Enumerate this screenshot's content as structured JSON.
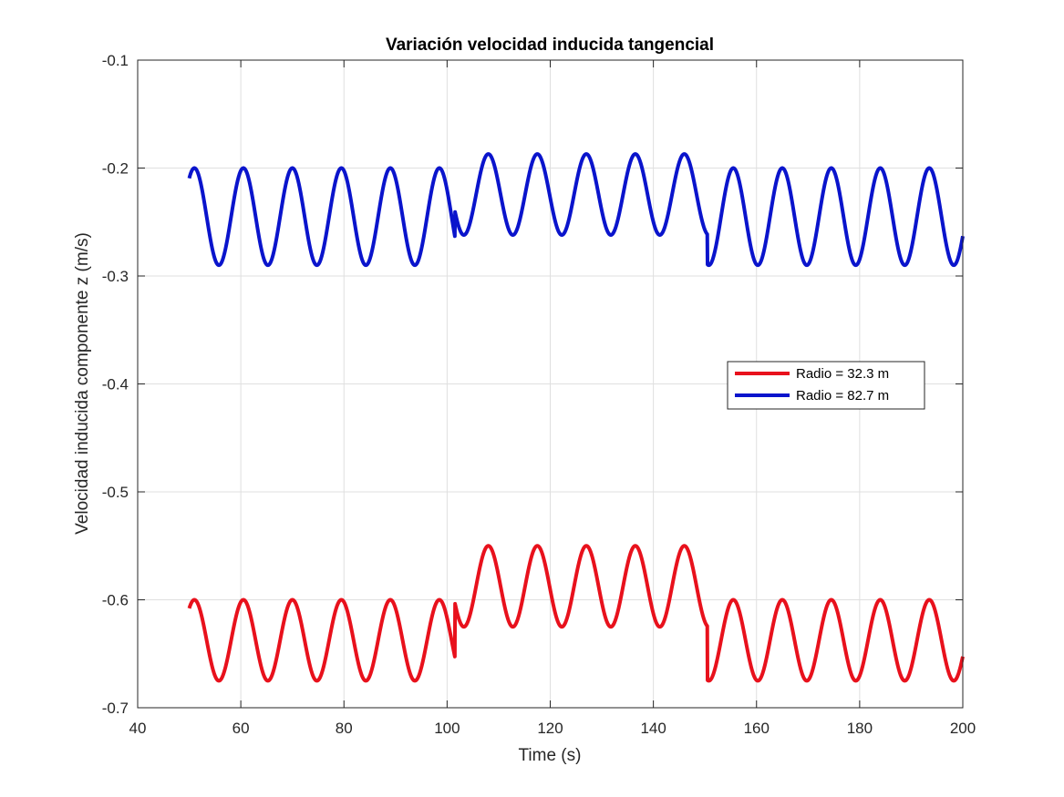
{
  "chart_data": {
    "type": "line",
    "title": "Variación velocidad inducida tangencial",
    "xlabel": "Time (s)",
    "ylabel": "Velocidad inducida componente z (m/s)",
    "xlim": [
      40,
      200
    ],
    "ylim": [
      -0.7,
      -0.1
    ],
    "xticks": [
      "40",
      "60",
      "80",
      "100",
      "120",
      "140",
      "160",
      "180",
      "200"
    ],
    "yticks": [
      "-0.1",
      "-0.2",
      "-0.3",
      "-0.4",
      "-0.5",
      "-0.6",
      "-0.7"
    ],
    "grid": true,
    "legend_position": "right",
    "series": [
      {
        "name": "Radio = 32.3 m",
        "color": "#e8111c",
        "x_start": 50,
        "x_end": 200,
        "period": 9.5,
        "segments": [
          {
            "x_from": 50,
            "x_to": 101.5,
            "max": -0.6,
            "min": -0.675
          },
          {
            "x_from": 101.5,
            "x_to": 150.5,
            "max": -0.55,
            "min": -0.625
          },
          {
            "x_from": 150.5,
            "x_to": 200,
            "max": -0.6,
            "min": -0.675
          }
        ]
      },
      {
        "name": "Radio = 82.7 m",
        "color": "#0a14cc",
        "x_start": 50,
        "x_end": 200,
        "period": 9.5,
        "segments": [
          {
            "x_from": 50,
            "x_to": 101.5,
            "max": -0.2,
            "min": -0.29
          },
          {
            "x_from": 101.5,
            "x_to": 150.5,
            "max": -0.187,
            "min": -0.262
          },
          {
            "x_from": 150.5,
            "x_to": 200,
            "max": -0.2,
            "min": -0.29
          }
        ]
      }
    ]
  }
}
